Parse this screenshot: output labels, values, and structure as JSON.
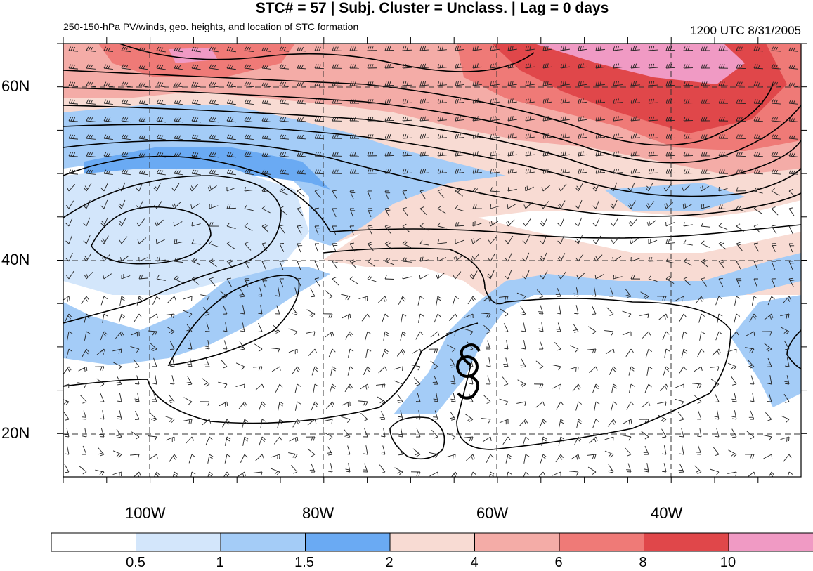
{
  "header": {
    "title": "STC# = 57 | Subj. Cluster = Unclass. | Lag = 0 days",
    "subtitle": "250-150-hPa PV/winds, geo. heights, and location of STC formation",
    "datetime": "1200 UTC  8/31/2005"
  },
  "map": {
    "lat_labels": [
      "60N",
      "40N",
      "20N"
    ],
    "lon_labels": [
      "100W",
      "80W",
      "60W",
      "40W"
    ],
    "storm_symbol": "tropical-cyclone-symbol",
    "colors": {
      "pv_0_05": "#ffffff",
      "pv_05_1": "#d3e6fb",
      "pv_1_15": "#a4ccf7",
      "pv_15_2": "#6aaaf3",
      "pv_2_4": "#f8dbd3",
      "pv_4_6": "#f4aca7",
      "pv_6_8": "#ef7a77",
      "pv_8_10": "#e0474a",
      "pv_10_plus": "#f09ac4"
    }
  },
  "colorbar": {
    "labels": [
      "0.5",
      "1",
      "1.5",
      "2",
      "4",
      "6",
      "8",
      "10"
    ]
  }
}
